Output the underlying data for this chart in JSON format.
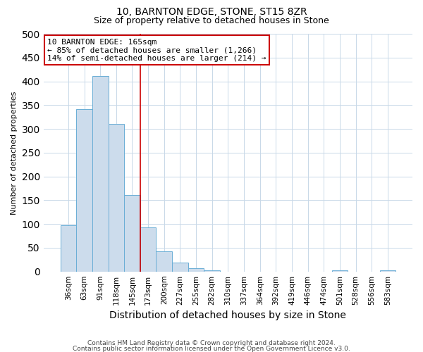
{
  "title": "10, BARNTON EDGE, STONE, ST15 8ZR",
  "subtitle": "Size of property relative to detached houses in Stone",
  "xlabel": "Distribution of detached houses by size in Stone",
  "ylabel": "Number of detached properties",
  "bin_labels": [
    "36sqm",
    "63sqm",
    "91sqm",
    "118sqm",
    "145sqm",
    "173sqm",
    "200sqm",
    "227sqm",
    "255sqm",
    "282sqm",
    "310sqm",
    "337sqm",
    "364sqm",
    "392sqm",
    "419sqm",
    "446sqm",
    "474sqm",
    "501sqm",
    "528sqm",
    "556sqm",
    "583sqm"
  ],
  "bar_values": [
    97,
    341,
    411,
    310,
    161,
    93,
    42,
    19,
    7,
    2,
    0,
    0,
    0,
    0,
    0,
    0,
    0,
    2,
    0,
    0,
    2
  ],
  "bar_color": "#ccdcec",
  "bar_edge_color": "#6aaed6",
  "property_line_label": "10 BARNTON EDGE: 165sqm",
  "annotation_line1": "← 85% of detached houses are smaller (1,266)",
  "annotation_line2": "14% of semi-detached houses are larger (214) →",
  "annotation_box_color": "#ffffff",
  "annotation_box_edge_color": "#cc0000",
  "property_line_color": "#cc0000",
  "property_line_index": 5,
  "ylim": [
    0,
    500
  ],
  "yticks": [
    0,
    50,
    100,
    150,
    200,
    250,
    300,
    350,
    400,
    450,
    500
  ],
  "footer1": "Contains HM Land Registry data © Crown copyright and database right 2024.",
  "footer2": "Contains public sector information licensed under the Open Government Licence v3.0.",
  "background_color": "#ffffff",
  "grid_color": "#c8d8e8",
  "title_fontsize": 10,
  "subtitle_fontsize": 9,
  "xlabel_fontsize": 10,
  "ylabel_fontsize": 8,
  "tick_fontsize": 7.5,
  "annotation_fontsize": 8,
  "footer_fontsize": 6.5
}
